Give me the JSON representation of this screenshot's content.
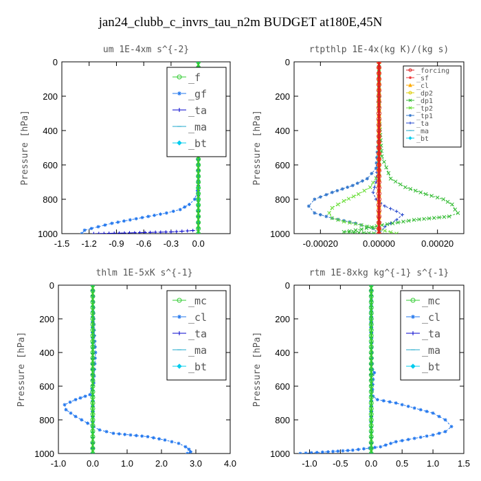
{
  "title": "jan24_clubb_c_invrs_tau_n2m  BUDGET at180E,45N",
  "chart_data": [
    {
      "type": "line",
      "title": "um  1E-4xm s^{-2}",
      "ylabel": "Pressure [hPa]",
      "xlim": [
        -1.5,
        0.35
      ],
      "ylim": [
        1000,
        0
      ],
      "xticks": [
        "-1.5",
        "-1.2",
        "-0.9",
        "-0.6",
        "-0.3",
        "0.0"
      ],
      "xtick_values": [
        -1.5,
        -1.2,
        -0.9,
        -0.6,
        -0.3,
        0.0
      ],
      "yticks": [
        "0",
        "200",
        "400",
        "600",
        "800",
        "1000"
      ],
      "ytick_values": [
        0,
        200,
        400,
        600,
        800,
        1000
      ],
      "legend": {
        "position": "top-right",
        "font": "large"
      },
      "series": [
        {
          "name": "_f",
          "color": "#33cc33",
          "marker": "circle",
          "x": [
            0,
            0,
            0,
            0,
            0,
            0,
            0,
            0,
            0,
            0,
            0,
            0
          ],
          "y": [
            0,
            100,
            200,
            300,
            400,
            500,
            600,
            700,
            800,
            900,
            970,
            1000
          ]
        },
        {
          "name": "_gf",
          "color": "#2277ee",
          "marker": "star",
          "x": [
            0.0,
            0.0,
            0.0,
            0.0,
            0.0,
            -0.01,
            -0.04,
            -0.1,
            -0.2,
            -0.35,
            -0.55,
            -0.75,
            -0.95,
            -1.1,
            -1.25,
            -1.28
          ],
          "y": [
            0,
            200,
            400,
            600,
            700,
            750,
            800,
            830,
            860,
            880,
            900,
            920,
            940,
            960,
            980,
            1000
          ]
        },
        {
          "name": "_ta",
          "color": "#0000cc",
          "marker": "plus",
          "x": [
            0,
            0,
            0,
            0,
            0,
            -0.3,
            -0.7,
            -1.15
          ],
          "y": [
            0,
            300,
            600,
            900,
            980,
            990,
            995,
            1000
          ]
        },
        {
          "name": "_ma",
          "color": "#22aacc",
          "marker": "dash",
          "x": [
            0,
            0,
            0,
            0,
            0
          ],
          "y": [
            0,
            250,
            500,
            750,
            1000
          ]
        },
        {
          "name": "_bt",
          "color": "#00ccee",
          "marker": "diamond",
          "x": [
            0,
            0,
            0,
            0,
            0,
            0,
            0,
            0,
            0,
            0,
            0
          ],
          "y": [
            0,
            100,
            200,
            300,
            400,
            500,
            600,
            700,
            800,
            900,
            1000
          ]
        }
      ]
    },
    {
      "type": "line",
      "title": "rtpthlp  1E-4x(kg K)/(kg s)",
      "ylabel": "Pressure [hPa]",
      "xlim": [
        -0.00029,
        0.00029
      ],
      "ylim": [
        1000,
        0
      ],
      "xticks": [
        "-0.00020",
        "0.00000",
        "0.00020"
      ],
      "xtick_values": [
        -0.0002,
        0.0,
        0.0002
      ],
      "yticks": [
        "0",
        "200",
        "400",
        "600",
        "800",
        "1000"
      ],
      "ytick_values": [
        0,
        200,
        400,
        600,
        800,
        1000
      ],
      "legend": {
        "position": "top-right",
        "font": "small"
      },
      "series": [
        {
          "name": "_forcing",
          "color": "#dd2222",
          "marker": "circle",
          "x": [
            0,
            0,
            0,
            0,
            0,
            0,
            0,
            0,
            0,
            0,
            0,
            0
          ],
          "y": [
            0,
            100,
            200,
            300,
            400,
            500,
            600,
            700,
            800,
            900,
            970,
            1000
          ]
        },
        {
          "name": "_sf",
          "color": "#ee3333",
          "marker": "star",
          "x": [
            0,
            0,
            0,
            0,
            0
          ],
          "y": [
            0,
            250,
            500,
            750,
            1000
          ]
        },
        {
          "name": "_cl",
          "color": "#ffaa00",
          "marker": "triangle",
          "x": [
            0,
            0,
            0,
            0,
            0
          ],
          "y": [
            0,
            250,
            500,
            750,
            1000
          ]
        },
        {
          "name": "_dp2",
          "color": "#ddcc00",
          "marker": "circle",
          "x": [
            0,
            0,
            0,
            0,
            0
          ],
          "y": [
            0,
            250,
            500,
            750,
            1000
          ]
        },
        {
          "name": "_dp1",
          "color": "#33bb33",
          "marker": "cross",
          "x": [
            0.0,
            0.0,
            1e-05,
            4e-05,
            9e-05,
            0.00016,
            0.00022,
            0.00025,
            0.00026,
            0.00027,
            0.00024,
            0.00012,
            1e-05,
            -6e-05,
            -0.00012,
            0.0
          ],
          "y": [
            0,
            300,
            550,
            680,
            730,
            770,
            800,
            830,
            860,
            880,
            900,
            920,
            950,
            975,
            990,
            1000
          ]
        },
        {
          "name": "_tp2",
          "color": "#66dd33",
          "marker": "cross",
          "x": [
            0.0,
            0.0,
            0.0,
            -3e-05,
            -7e-05,
            -0.00012,
            -0.00016,
            -0.00017,
            -0.00016,
            -0.00012,
            -6e-05,
            0.0,
            6e-05
          ],
          "y": [
            0,
            400,
            650,
            730,
            770,
            810,
            850,
            880,
            910,
            930,
            950,
            975,
            1000
          ]
        },
        {
          "name": "_tp1",
          "color": "#3377cc",
          "marker": "star",
          "x": [
            0.0,
            0.0,
            -1e-05,
            -4e-05,
            -9e-05,
            -0.00016,
            -0.00022,
            -0.00024,
            -0.00022,
            -0.00016,
            -8e-05,
            -2e-05,
            0.0
          ],
          "y": [
            0,
            400,
            620,
            680,
            720,
            760,
            800,
            840,
            880,
            910,
            940,
            970,
            1000
          ]
        },
        {
          "name": "_ta",
          "color": "#2244cc",
          "marker": "plus",
          "x": [
            0.0,
            0.0,
            -1e-05,
            -2e-05,
            -1e-05,
            2e-05,
            6e-05,
            8e-05,
            6e-05,
            2e-05,
            0.0
          ],
          "y": [
            0,
            500,
            700,
            760,
            800,
            840,
            870,
            890,
            920,
            960,
            1000
          ]
        },
        {
          "name": "_ma",
          "color": "#22aacc",
          "marker": "dash",
          "x": [
            0,
            0,
            0,
            0,
            0
          ],
          "y": [
            0,
            250,
            500,
            750,
            1000
          ]
        },
        {
          "name": "_bt",
          "color": "#00ccee",
          "marker": "diamond",
          "x": [
            0,
            0,
            0,
            0,
            0
          ],
          "y": [
            0,
            250,
            500,
            750,
            1000
          ]
        }
      ]
    },
    {
      "type": "line",
      "title": "thlm  1E-5xK s^{-1}",
      "ylabel": "Pressure [hPa]",
      "xlim": [
        -1.0,
        4.0
      ],
      "ylim": [
        1000,
        0
      ],
      "xticks": [
        "-1.0",
        "0.0",
        "1.0",
        "2.0",
        "3.0",
        "4.0"
      ],
      "xtick_values": [
        -1.0,
        0.0,
        1.0,
        2.0,
        3.0,
        4.0
      ],
      "yticks": [
        "0",
        "200",
        "400",
        "600",
        "800",
        "1000"
      ],
      "ytick_values": [
        0,
        200,
        400,
        600,
        800,
        1000
      ],
      "legend": {
        "position": "top-right",
        "font": "large"
      },
      "series": [
        {
          "name": "_mc",
          "color": "#33cc33",
          "marker": "circle",
          "x": [
            0,
            0,
            0,
            0,
            0,
            0,
            0,
            0,
            0,
            0,
            0,
            0
          ],
          "y": [
            0,
            100,
            200,
            300,
            400,
            500,
            600,
            700,
            800,
            900,
            970,
            1000
          ]
        },
        {
          "name": "_cl",
          "color": "#2277ee",
          "marker": "star",
          "x": [
            0.0,
            0.02,
            0.03,
            0.05,
            0.08,
            0.05,
            0.03,
            -0.08,
            -0.5,
            -0.82,
            -0.78,
            -0.5,
            -0.15,
            0.2,
            0.6,
            1.1,
            1.6,
            2.1,
            2.5,
            2.7,
            2.8,
            2.85,
            2.75
          ],
          "y": [
            0,
            100,
            200,
            300,
            400,
            500,
            580,
            650,
            680,
            710,
            740,
            780,
            820,
            860,
            880,
            890,
            900,
            920,
            940,
            960,
            975,
            990,
            1000
          ]
        },
        {
          "name": "_ta",
          "color": "#0000cc",
          "marker": "plus",
          "x": [
            0,
            0,
            0,
            0,
            0
          ],
          "y": [
            0,
            250,
            500,
            750,
            1000
          ]
        },
        {
          "name": "_ma",
          "color": "#22aacc",
          "marker": "dash",
          "x": [
            0,
            0,
            0,
            0,
            0
          ],
          "y": [
            0,
            250,
            500,
            750,
            1000
          ]
        },
        {
          "name": "_bt",
          "color": "#00ccee",
          "marker": "diamond",
          "x": [
            0,
            0,
            0,
            0,
            0
          ],
          "y": [
            0,
            250,
            500,
            750,
            1000
          ]
        }
      ]
    },
    {
      "type": "line",
      "title": "rtm  1E-8xkg kg^{-1} s^{-1}",
      "ylabel": "Pressure [hPa]",
      "xlim": [
        -1.25,
        1.5
      ],
      "ylim": [
        1000,
        0
      ],
      "xticks": [
        "-1.0",
        "-0.5",
        "0.0",
        "0.5",
        "1.0",
        "1.5"
      ],
      "xtick_values": [
        -1.0,
        -0.5,
        0.0,
        0.5,
        1.0,
        1.5
      ],
      "yticks": [
        "0",
        "200",
        "400",
        "600",
        "800",
        "1000"
      ],
      "ytick_values": [
        0,
        200,
        400,
        600,
        800,
        1000
      ],
      "legend": {
        "position": "top-right",
        "font": "large"
      },
      "series": [
        {
          "name": "_mc",
          "color": "#33cc33",
          "marker": "circle",
          "x": [
            0,
            0,
            0,
            0,
            0,
            0,
            0,
            0,
            0,
            0,
            0,
            0
          ],
          "y": [
            0,
            100,
            200,
            300,
            400,
            500,
            600,
            700,
            800,
            900,
            970,
            1000
          ]
        },
        {
          "name": "_cl",
          "color": "#2277ee",
          "marker": "star",
          "x": [
            0.0,
            0.0,
            0.01,
            0.02,
            0.05,
            0.03,
            0.02,
            0.03,
            0.1,
            0.4,
            0.7,
            1.0,
            1.2,
            1.3,
            1.2,
            1.0,
            0.7,
            0.4,
            0.15,
            -0.3,
            -0.7,
            -1.15
          ],
          "y": [
            0,
            200,
            400,
            500,
            520,
            560,
            620,
            660,
            680,
            700,
            730,
            760,
            800,
            840,
            870,
            890,
            910,
            930,
            960,
            980,
            990,
            1000
          ]
        },
        {
          "name": "_ta",
          "color": "#0000cc",
          "marker": "plus",
          "x": [
            0,
            0,
            0,
            0,
            0
          ],
          "y": [
            0,
            250,
            500,
            750,
            1000
          ]
        },
        {
          "name": "_ma",
          "color": "#22aacc",
          "marker": "dash",
          "x": [
            0,
            0,
            0,
            0,
            0
          ],
          "y": [
            0,
            250,
            500,
            750,
            1000
          ]
        },
        {
          "name": "_bt",
          "color": "#00ccee",
          "marker": "diamond",
          "x": [
            0,
            0,
            0,
            0,
            0
          ],
          "y": [
            0,
            250,
            500,
            750,
            1000
          ]
        }
      ]
    }
  ]
}
